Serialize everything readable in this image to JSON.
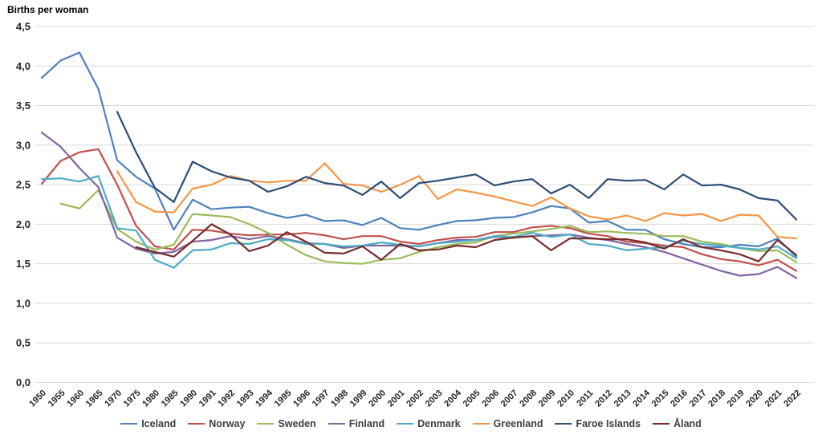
{
  "title": "Births per woman",
  "colors": {
    "grid": "#d9d9d9",
    "axis_text": "#262626",
    "legend_text": "#3f3f3f",
    "background": "#ffffff"
  },
  "chart_data": {
    "type": "line",
    "title": "Births per woman",
    "xlabel": "",
    "ylabel": "Births per woman",
    "grid": true,
    "legend_position": "bottom",
    "y_axis": {
      "min": 0,
      "max": 4.5,
      "step": 0.5,
      "tick_labels": [
        "0,0",
        "0,5",
        "1,0",
        "1,5",
        "2,0",
        "2,5",
        "3,0",
        "3,5",
        "4,0",
        "4,5"
      ]
    },
    "categories": [
      "1950",
      "1955",
      "1960",
      "1965",
      "1970",
      "1975",
      "1980",
      "1985",
      "1990",
      "1991",
      "1992",
      "1993",
      "1994",
      "1995",
      "1996",
      "1997",
      "1998",
      "1999",
      "2000",
      "2001",
      "2002",
      "2003",
      "2004",
      "2005",
      "2006",
      "2007",
      "2008",
      "2009",
      "2010",
      "2011",
      "2012",
      "2013",
      "2014",
      "2015",
      "2016",
      "2017",
      "2018",
      "2019",
      "2020",
      "2021",
      "2022"
    ],
    "series": [
      {
        "name": "Iceland",
        "color": "#4F81BD",
        "values": [
          3.85,
          4.07,
          4.17,
          3.71,
          2.81,
          2.6,
          2.45,
          1.93,
          2.31,
          2.19,
          2.21,
          2.22,
          2.14,
          2.08,
          2.12,
          2.04,
          2.05,
          1.99,
          2.08,
          1.95,
          1.93,
          1.99,
          2.04,
          2.05,
          2.08,
          2.09,
          2.15,
          2.23,
          2.2,
          2.02,
          2.04,
          1.93,
          1.93,
          1.81,
          1.75,
          1.71,
          1.71,
          1.74,
          1.72,
          1.82,
          1.59
        ]
      },
      {
        "name": "Norway",
        "color": "#C0504D",
        "values": [
          2.51,
          2.8,
          2.91,
          2.95,
          2.5,
          1.98,
          1.72,
          1.68,
          1.93,
          1.92,
          1.88,
          1.86,
          1.87,
          1.87,
          1.89,
          1.86,
          1.81,
          1.85,
          1.85,
          1.78,
          1.75,
          1.8,
          1.83,
          1.84,
          1.9,
          1.9,
          1.96,
          1.98,
          1.95,
          1.88,
          1.85,
          1.78,
          1.76,
          1.73,
          1.71,
          1.62,
          1.56,
          1.53,
          1.48,
          1.55,
          1.41
        ]
      },
      {
        "name": "Sweden",
        "color": "#9BBB59",
        "values": [
          null,
          2.26,
          2.2,
          2.43,
          1.94,
          1.78,
          1.68,
          1.74,
          2.13,
          2.11,
          2.09,
          2.0,
          1.89,
          1.74,
          1.61,
          1.53,
          1.51,
          1.5,
          1.55,
          1.57,
          1.65,
          1.71,
          1.75,
          1.77,
          1.85,
          1.88,
          1.91,
          1.94,
          1.98,
          1.9,
          1.91,
          1.89,
          1.88,
          1.85,
          1.85,
          1.78,
          1.75,
          1.7,
          1.66,
          1.67,
          1.52
        ]
      },
      {
        "name": "Finland",
        "color": "#8064A2",
        "values": [
          3.16,
          2.98,
          2.71,
          2.47,
          1.83,
          1.69,
          1.63,
          1.65,
          1.78,
          1.8,
          1.85,
          1.81,
          1.85,
          1.81,
          1.76,
          1.75,
          1.7,
          1.73,
          1.73,
          1.73,
          1.72,
          1.76,
          1.8,
          1.8,
          1.84,
          1.83,
          1.85,
          1.86,
          1.87,
          1.83,
          1.8,
          1.75,
          1.71,
          1.65,
          1.57,
          1.49,
          1.41,
          1.35,
          1.37,
          1.46,
          1.32
        ]
      },
      {
        "name": "Denmark",
        "color": "#4BACC6",
        "values": [
          2.57,
          2.58,
          2.54,
          2.61,
          1.95,
          1.92,
          1.55,
          1.45,
          1.67,
          1.68,
          1.76,
          1.75,
          1.81,
          1.8,
          1.75,
          1.75,
          1.72,
          1.73,
          1.77,
          1.74,
          1.72,
          1.76,
          1.78,
          1.8,
          1.85,
          1.84,
          1.89,
          1.84,
          1.87,
          1.75,
          1.73,
          1.67,
          1.69,
          1.71,
          1.79,
          1.75,
          1.73,
          1.7,
          1.68,
          1.72,
          1.57
        ]
      },
      {
        "name": "Greenland",
        "color": "#F79646",
        "values": [
          null,
          null,
          null,
          null,
          2.67,
          2.28,
          2.16,
          2.15,
          2.45,
          2.5,
          2.61,
          2.55,
          2.53,
          2.55,
          2.55,
          2.77,
          2.51,
          2.49,
          2.41,
          2.5,
          2.61,
          2.32,
          2.44,
          2.4,
          2.35,
          2.29,
          2.23,
          2.34,
          2.2,
          2.1,
          2.06,
          2.11,
          2.04,
          2.14,
          2.11,
          2.13,
          2.04,
          2.12,
          2.11,
          1.84,
          1.82
        ]
      },
      {
        "name": "Faroe Islands",
        "color": "#2C4D75",
        "values": [
          null,
          null,
          null,
          null,
          3.42,
          2.91,
          2.46,
          2.28,
          2.79,
          2.67,
          2.59,
          2.55,
          2.41,
          2.48,
          2.6,
          2.52,
          2.49,
          2.37,
          2.54,
          2.33,
          2.52,
          2.55,
          2.59,
          2.63,
          2.49,
          2.54,
          2.57,
          2.39,
          2.5,
          2.33,
          2.57,
          2.55,
          2.56,
          2.44,
          2.63,
          2.49,
          2.5,
          2.44,
          2.33,
          2.3,
          2.06
        ]
      },
      {
        "name": "Åland",
        "color": "#772C2A",
        "values": [
          null,
          null,
          null,
          null,
          null,
          1.71,
          1.65,
          1.59,
          1.79,
          2.0,
          1.87,
          1.66,
          1.73,
          1.9,
          1.78,
          1.64,
          1.63,
          1.72,
          1.55,
          1.75,
          1.67,
          1.68,
          1.73,
          1.71,
          1.8,
          1.83,
          1.85,
          1.67,
          1.82,
          1.82,
          1.81,
          1.81,
          1.77,
          1.69,
          1.81,
          1.71,
          1.67,
          1.62,
          1.53,
          1.8,
          1.61
        ]
      }
    ]
  }
}
